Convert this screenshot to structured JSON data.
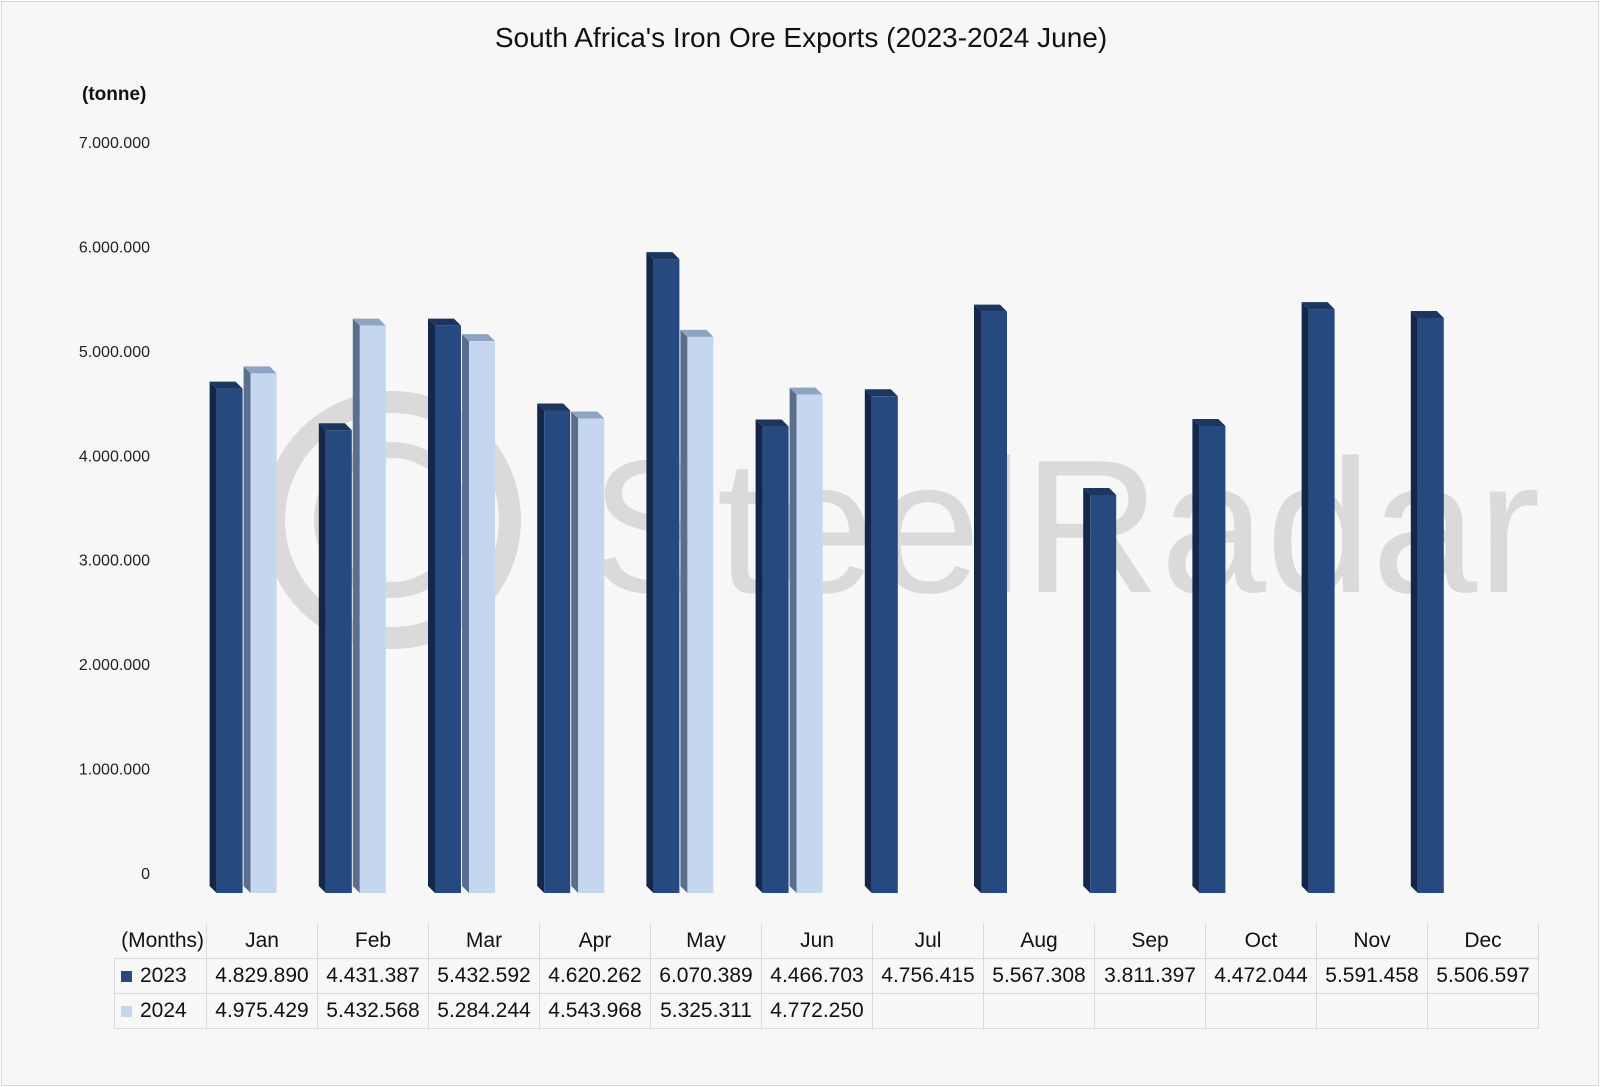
{
  "chart_data": {
    "type": "bar",
    "title": "South Africa's Iron Ore Exports (2023-2024 June)",
    "ylabel": "(tonne)",
    "xlabel": "(Months)",
    "ylim": [
      0,
      7000000
    ],
    "yticks": [
      0,
      1000000,
      2000000,
      3000000,
      4000000,
      5000000,
      6000000,
      7000000
    ],
    "ytick_labels": [
      "0",
      "1.000.000",
      "2.000.000",
      "3.000.000",
      "4.000.000",
      "5.000.000",
      "6.000.000",
      "7.000.000"
    ],
    "categories": [
      "Jan",
      "Feb",
      "Mar",
      "Apr",
      "May",
      "Jun",
      "Jul",
      "Aug",
      "Sep",
      "Oct",
      "Nov",
      "Dec"
    ],
    "series": [
      {
        "name": "2023",
        "color": "#264a7f",
        "values": [
          4829890,
          4431387,
          5432592,
          4620262,
          6070389,
          4466703,
          4756415,
          5567308,
          3811397,
          4472044,
          5591458,
          5506597
        ],
        "labels": [
          "4.829.890",
          "4.431.387",
          "5.432.592",
          "4.620.262",
          "6.070.389",
          "4.466.703",
          "4.756.415",
          "5.567.308",
          "3.811.397",
          "4.472.044",
          "5.591.458",
          "5.506.597"
        ]
      },
      {
        "name": "2024",
        "color": "#c4d7ef",
        "values": [
          4975429,
          5432568,
          5284244,
          4543968,
          5325311,
          4772250,
          null,
          null,
          null,
          null,
          null,
          null
        ],
        "labels": [
          "4.975.429",
          "5.432.568",
          "5.284.244",
          "4.543.968",
          "5.325.311",
          "4.772.250",
          "",
          "",
          "",
          "",
          "",
          ""
        ]
      }
    ],
    "grid": false,
    "legend": "data-table"
  }
}
